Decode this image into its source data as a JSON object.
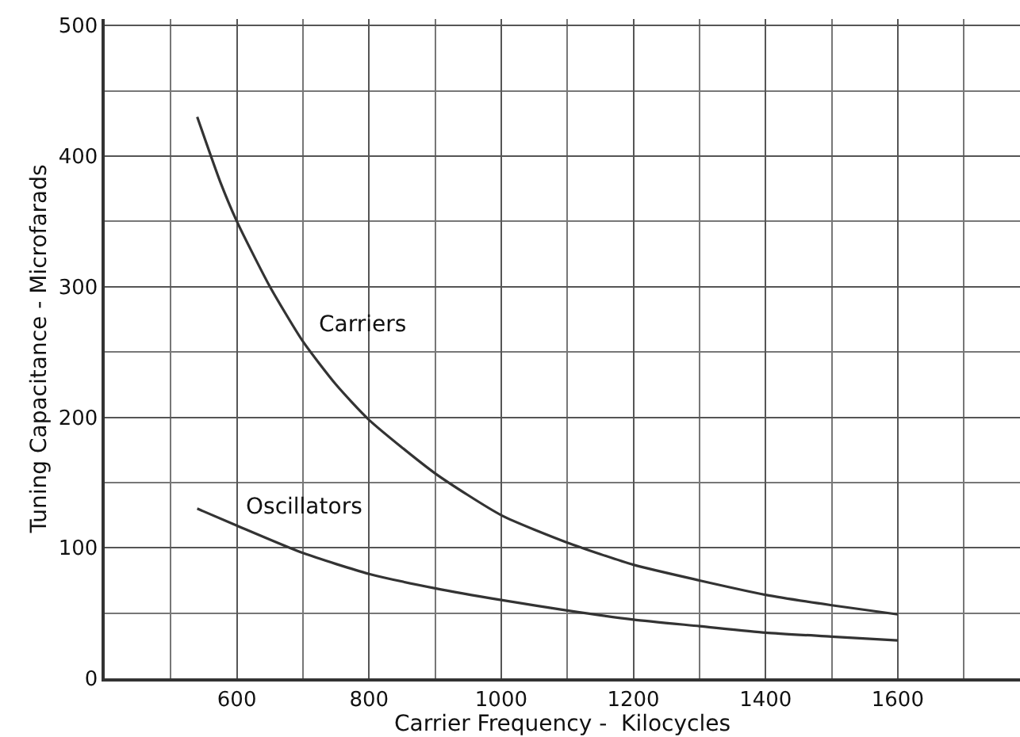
{
  "chart_data": {
    "type": "line",
    "xlabel": "Carrier Frequency -  Kilocycles",
    "ylabel": "Tuning Capacitance - Microfarads",
    "xlim": [
      400,
      1785
    ],
    "xticks": [
      600,
      800,
      1000,
      1200,
      1400,
      1600
    ],
    "ylim": [
      0,
      505
    ],
    "yticks": [
      0,
      100,
      200,
      300,
      400,
      500
    ],
    "grid": true,
    "legend": false,
    "marker": "none",
    "line_style": "solid",
    "series": [
      {
        "name": "Carriers",
        "color": "#333333",
        "x": [
          540,
          575,
          600,
          650,
          700,
          750,
          800,
          900,
          1000,
          1100,
          1200,
          1300,
          1400,
          1500,
          1600
        ],
        "values": [
          430,
          380,
          350,
          300,
          258,
          225,
          198,
          157,
          125,
          104,
          87,
          75,
          64,
          56,
          49
        ]
      },
      {
        "name": "Oscillators",
        "color": "#333333",
        "x": [
          540,
          600,
          700,
          800,
          900,
          1000,
          1100,
          1200,
          1300,
          1400,
          1500,
          1600
        ],
        "values": [
          130,
          117,
          96,
          80,
          69,
          60,
          52,
          45,
          40,
          35,
          32,
          29
        ]
      }
    ]
  }
}
